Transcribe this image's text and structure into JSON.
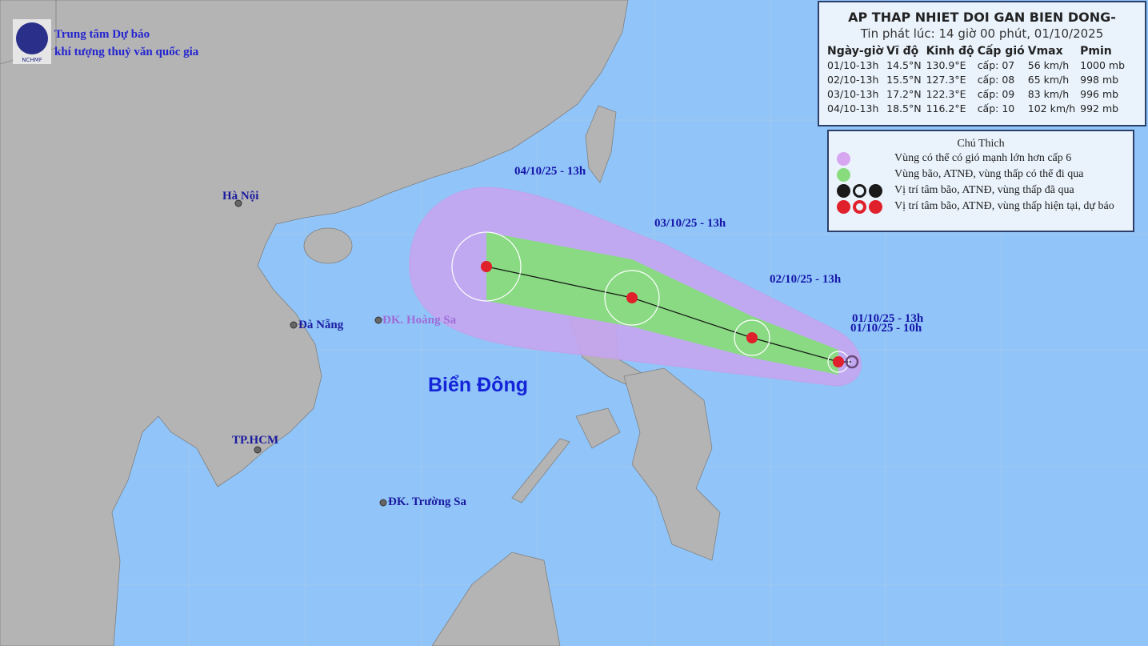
{
  "header": {
    "org_line1": "Trung tâm Dự báo",
    "org_line2": "khí tượng thuỷ văn quốc gia",
    "logo_text": "NCHMF"
  },
  "info": {
    "title": "AP THAP NHIET DOI GAN BIEN DONG-",
    "issued": "Tin phát lúc: 14 giờ 00 phút, 01/10/2025",
    "columns": [
      "Ngày-giờ",
      "Vĩ độ",
      "Kinh độ",
      "Cấp gió",
      "Vmax",
      "Pmin"
    ],
    "rows": [
      [
        "01/10-13h",
        "14.5°N",
        "130.9°E",
        "cấp: 07",
        "56 km/h",
        "1000 mb"
      ],
      [
        "02/10-13h",
        "15.5°N",
        "127.3°E",
        "cấp: 08",
        "65 km/h",
        "998 mb"
      ],
      [
        "03/10-13h",
        "17.2°N",
        "122.3°E",
        "cấp: 09",
        "83 km/h",
        "996 mb"
      ],
      [
        "04/10-13h",
        "18.5°N",
        "116.2°E",
        "cấp: 10",
        "102 km/h",
        "992 mb"
      ]
    ]
  },
  "legend": {
    "title": "Chú Thich",
    "items": [
      {
        "label": "Vùng có thể có gió mạnh lớn hơn cấp 6",
        "color": "#d6a6f0"
      },
      {
        "label": "Vùng bão, ATNĐ, vùng thấp có thể đi qua",
        "color": "#88dc7e"
      },
      {
        "label": "Vị trí tâm bão, ATNĐ, vùng thấp đã qua",
        "color": "#1a1a1a"
      },
      {
        "label": "Vị trí tâm bão, ATNĐ, vùng thấp hiện tại, dự báo",
        "color": "#e0202a"
      }
    ]
  },
  "map": {
    "places": {
      "hanoi": "Hà Nội",
      "danang": "Đà Nẵng",
      "hoangsa": "ĐK. Hoàng Sa",
      "hcm": "TP.HCM",
      "truongsa": "ĐK. Trường Sa",
      "sea": "Biển Đông"
    },
    "track_labels": {
      "d4": "04/10/25 - 13h",
      "d3": "03/10/25 - 13h",
      "d2": "02/10/25 - 13h",
      "d1": "01/10/25 - 13h",
      "d0": "01/10/25 - 10h"
    }
  }
}
